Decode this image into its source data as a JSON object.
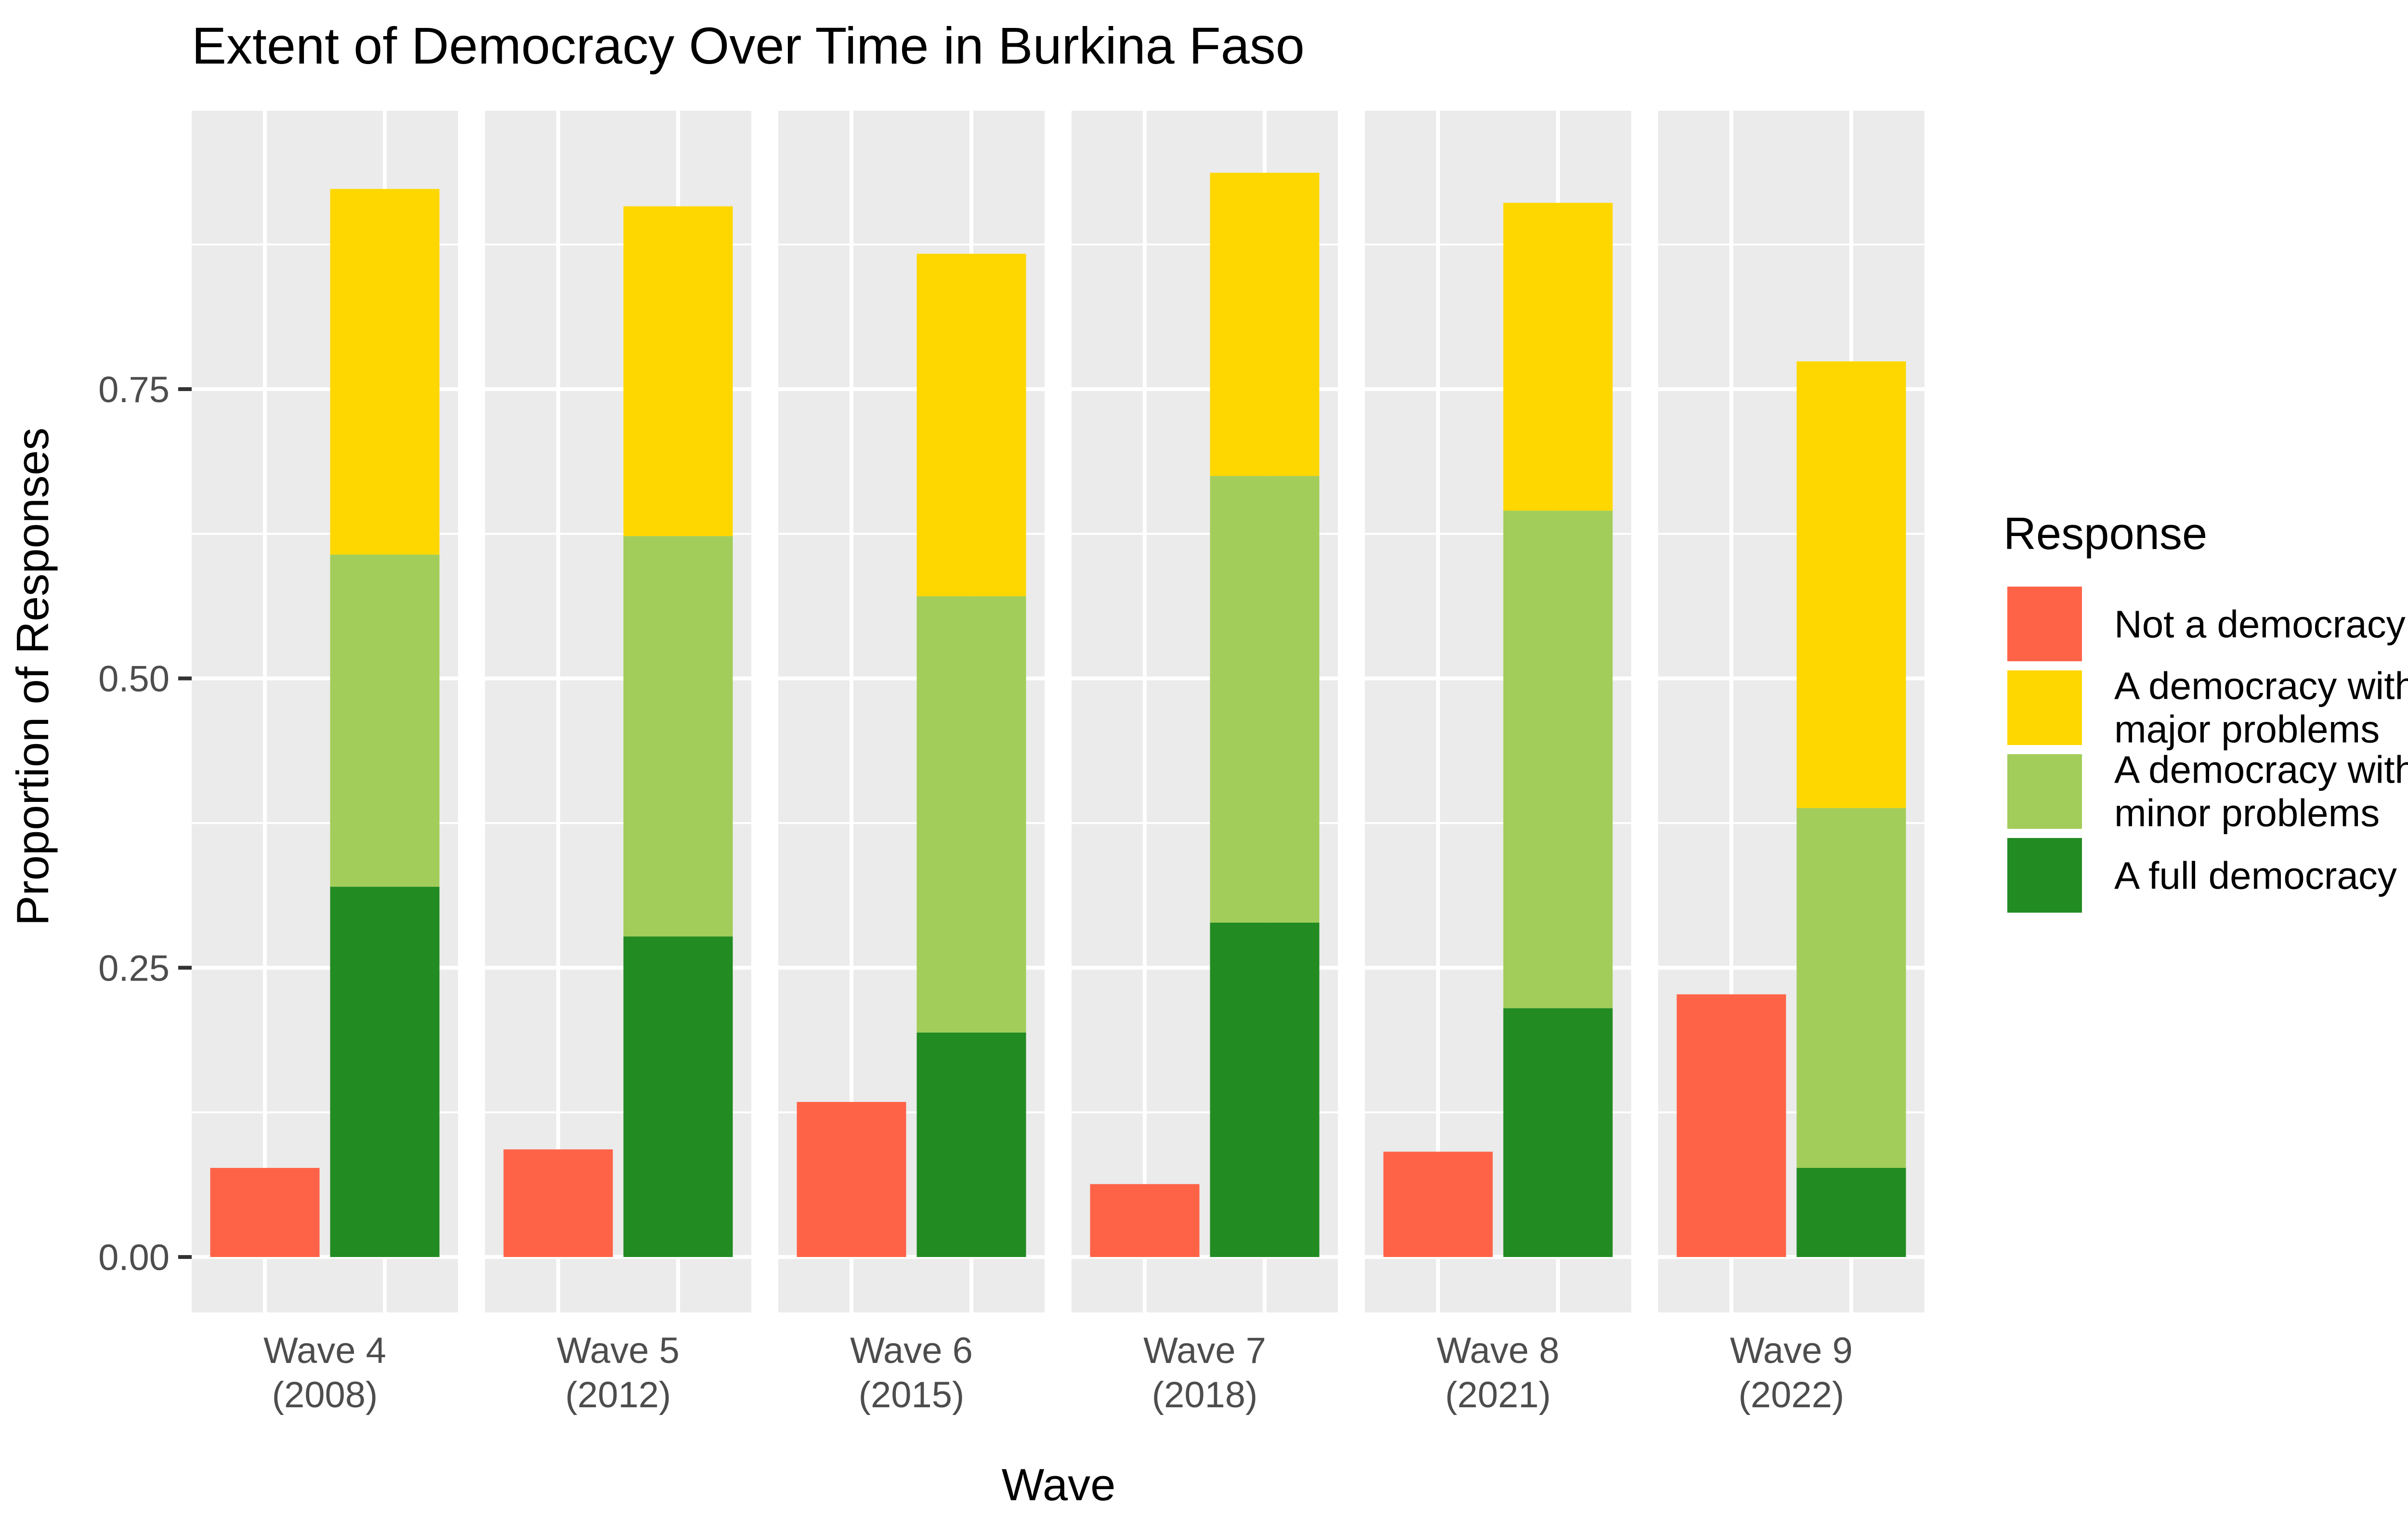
{
  "chart_data": {
    "type": "bar",
    "title": "Extent of Democracy Over Time in Burkina Faso",
    "xlabel": "Wave",
    "ylabel": "Proportion of Responses",
    "ylim": [
      0,
      1
    ],
    "yticks": [
      "0.00",
      "0.25",
      "0.50",
      "0.75"
    ],
    "grid": true,
    "legend_position": "right",
    "legend_title": "Response",
    "categories": [
      [
        "Wave 4",
        "(2008)"
      ],
      [
        "Wave 5",
        "(2012)"
      ],
      [
        "Wave 6",
        "(2015)"
      ],
      [
        "Wave 7",
        "(2018)"
      ],
      [
        "Wave 8",
        "(2021)"
      ],
      [
        "Wave 9",
        "(2022)"
      ]
    ],
    "series": [
      {
        "name": "Not a democracy",
        "color": "#FF6347",
        "values": [
          0.077,
          0.093,
          0.134,
          0.063,
          0.091,
          0.227
        ]
      },
      {
        "name": "A democracy with major problems",
        "color": "#FFD700",
        "values": [
          0.316,
          0.285,
          0.296,
          0.262,
          0.266,
          0.386
        ]
      },
      {
        "name": "A democracy with minor problems",
        "color": "#A2CD5A",
        "values": [
          0.287,
          0.346,
          0.377,
          0.386,
          0.43,
          0.311
        ]
      },
      {
        "name": "A full democracy",
        "color": "#228B22",
        "values": [
          0.32,
          0.277,
          0.194,
          0.289,
          0.215,
          0.077
        ]
      }
    ],
    "legend_labels": [
      [
        "Not a democracy"
      ],
      [
        "A democracy with",
        "major problems"
      ],
      [
        "A democracy with",
        "minor problems"
      ],
      [
        "A full democracy"
      ]
    ]
  }
}
